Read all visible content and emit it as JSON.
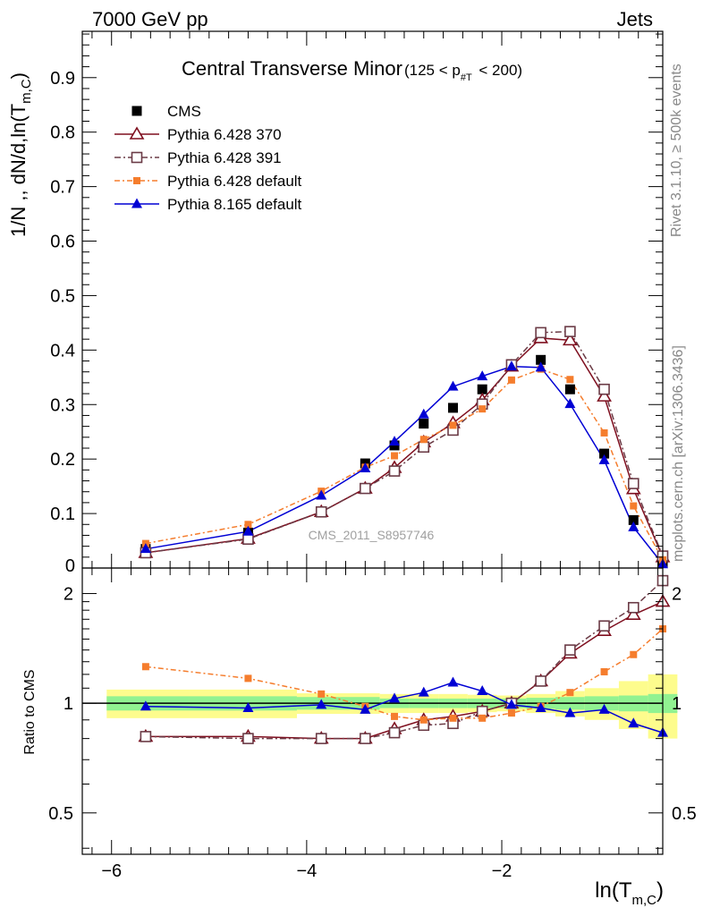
{
  "header": {
    "left": "7000 GeV pp",
    "right": "Jets"
  },
  "side_texts": {
    "rivet": "Rivet 3.1.10, ≥ 500k events",
    "mcplots": "mcplots.cern.ch [arXiv:1306.3436]"
  },
  "chart_data": [
    {
      "type": "line",
      "title_main": "Central Transverse Minor",
      "title_cut": "(125 < p",
      "title_cut_sub": "#T",
      "title_cut_end": " < 200)",
      "ylabel_main": "1/N ,, dN/d,ln(T",
      "ylabel_sub": "m,C",
      "ylabel_end": ")",
      "watermark": "CMS_2011_S8957746",
      "xlim": [
        -6.3,
        -0.35
      ],
      "ylim": [
        0,
        0.985
      ],
      "yticks": [
        0.1,
        0.2,
        0.3,
        0.4,
        0.5,
        0.6,
        0.7,
        0.8,
        0.9
      ],
      "ytick_labels": [
        "0.1",
        "0.2",
        "0.3",
        "0.4",
        "0.5",
        "0.6",
        "0.7",
        "0.8",
        "0.9"
      ],
      "ytick_zero_label": "0",
      "grid": false,
      "legend_position": "top-left",
      "series": [
        {
          "name": "CMS",
          "color": "#000000",
          "marker": "square-filled",
          "x": [
            -5.65,
            -4.6,
            -3.85,
            -3.4,
            -3.1,
            -2.8,
            -2.5,
            -2.2,
            -1.9,
            -1.6,
            -1.3,
            -0.95,
            -0.65,
            -0.35
          ],
          "y": [
            0.035,
            0.065,
            0.103,
            0.192,
            0.225,
            0.265,
            0.294,
            0.328,
            0.372,
            0.382,
            0.328,
            0.21,
            0.088,
            0.01
          ]
        },
        {
          "name": "Pythia 6.428 370",
          "color": "#7f0f1f",
          "marker": "triangle-open",
          "dash": "",
          "x": [
            -5.65,
            -4.6,
            -3.85,
            -3.4,
            -3.1,
            -2.8,
            -2.5,
            -2.2,
            -1.9,
            -1.6,
            -1.3,
            -0.95,
            -0.65,
            -0.35
          ],
          "y": [
            0.028,
            0.054,
            0.103,
            0.146,
            0.184,
            0.231,
            0.266,
            0.308,
            0.37,
            0.422,
            0.418,
            0.315,
            0.145,
            0.02
          ]
        },
        {
          "name": "Pythia 6.428 391",
          "color": "#6b3b46",
          "marker": "square-open",
          "dash": "7,3,2,3",
          "x": [
            -5.65,
            -4.6,
            -3.85,
            -3.4,
            -3.1,
            -2.8,
            -2.5,
            -2.2,
            -1.9,
            -1.6,
            -1.3,
            -0.95,
            -0.65,
            -0.35
          ],
          "y": [
            0.028,
            0.053,
            0.103,
            0.146,
            0.178,
            0.222,
            0.253,
            0.301,
            0.373,
            0.432,
            0.434,
            0.328,
            0.155,
            0.022
          ]
        },
        {
          "name": "Pythia 6.428 default",
          "color": "#f57d2d",
          "marker": "square-small",
          "dash": "6,3,2,3",
          "x": [
            -5.65,
            -4.6,
            -3.85,
            -3.4,
            -3.1,
            -2.8,
            -2.5,
            -2.2,
            -1.9,
            -1.6,
            -1.3,
            -0.95,
            -0.65,
            -0.35
          ],
          "y": [
            0.045,
            0.08,
            0.141,
            0.185,
            0.206,
            0.236,
            0.262,
            0.292,
            0.345,
            0.365,
            0.346,
            0.248,
            0.114,
            0.015
          ]
        },
        {
          "name": "Pythia 8.165 default",
          "color": "#0000d4",
          "marker": "triangle-filled",
          "dash": "",
          "x": [
            -5.65,
            -4.6,
            -3.85,
            -3.4,
            -3.1,
            -2.8,
            -2.5,
            -2.2,
            -1.9,
            -1.6,
            -1.3,
            -0.95,
            -0.65,
            -0.35
          ],
          "y": [
            0.035,
            0.067,
            0.133,
            0.183,
            0.232,
            0.282,
            0.333,
            0.352,
            0.37,
            0.368,
            0.301,
            0.198,
            0.075,
            0.007
          ]
        }
      ]
    },
    {
      "type": "line",
      "ylabel": "Ratio to CMS",
      "xlabel_main": "ln(T",
      "xlabel_sub": "m,C",
      "xlabel_end": ")",
      "xlim": [
        -6.3,
        -0.35
      ],
      "ylim": [
        0.385,
        2.35
      ],
      "log_y": true,
      "yticks": [
        0.5,
        1,
        2
      ],
      "ytick_labels": [
        "0.5",
        "1",
        "2"
      ],
      "xticks": [
        -6,
        -4,
        -2
      ],
      "xtick_labels": [
        "−6",
        "−4",
        "−2"
      ],
      "reference_line": 1,
      "band_bins": [
        -6.05,
        -5.2,
        -4.1,
        -3.6,
        -3.25,
        -2.95,
        -2.65,
        -2.35,
        -2.05,
        -1.75,
        -1.45,
        -1.15,
        -0.8,
        -0.5,
        -0.2
      ],
      "band_inner": [
        0.045,
        0.045,
        0.04,
        0.04,
        0.03,
        0.03,
        0.03,
        0.03,
        0.03,
        0.035,
        0.04,
        0.045,
        0.05,
        0.06
      ],
      "band_outer": [
        0.09,
        0.09,
        0.065,
        0.065,
        0.06,
        0.06,
        0.06,
        0.055,
        0.05,
        0.06,
        0.08,
        0.1,
        0.15,
        0.2
      ],
      "band_colors": {
        "inner": "#91f291",
        "outer": "#fdfc8d"
      },
      "series": [
        {
          "name": "Pythia 6.428 370",
          "x": [
            -5.65,
            -4.6,
            -3.85,
            -3.4,
            -3.1,
            -2.8,
            -2.5,
            -2.2,
            -1.9,
            -1.6,
            -1.3,
            -0.95,
            -0.65,
            -0.35
          ],
          "y": [
            0.81,
            0.81,
            0.8,
            0.8,
            0.85,
            0.9,
            0.92,
            0.95,
            1.0,
            1.15,
            1.37,
            1.58,
            1.75,
            1.9
          ]
        },
        {
          "name": "Pythia 6.428 391",
          "x": [
            -5.65,
            -4.6,
            -3.85,
            -3.4,
            -3.1,
            -2.8,
            -2.5,
            -2.2,
            -1.9,
            -1.6,
            -1.3,
            -0.95,
            -0.65,
            -0.35
          ],
          "y": [
            0.81,
            0.8,
            0.8,
            0.8,
            0.83,
            0.87,
            0.88,
            0.95,
            1.0,
            1.15,
            1.4,
            1.63,
            1.83,
            2.17
          ]
        },
        {
          "name": "Pythia 6.428 default",
          "x": [
            -5.65,
            -4.6,
            -3.85,
            -3.4,
            -3.1,
            -2.8,
            -2.5,
            -2.2,
            -1.9,
            -1.6,
            -1.3,
            -0.95,
            -0.65,
            -0.35
          ],
          "y": [
            1.26,
            1.17,
            1.06,
            0.98,
            0.92,
            0.9,
            0.91,
            0.91,
            0.94,
            0.98,
            1.07,
            1.22,
            1.36,
            1.6
          ]
        },
        {
          "name": "Pythia 8.165 default",
          "x": [
            -5.65,
            -4.6,
            -3.85,
            -3.4,
            -3.1,
            -2.8,
            -2.5,
            -2.2,
            -1.9,
            -1.6,
            -1.3,
            -0.95,
            -0.65,
            -0.35
          ],
          "y": [
            0.98,
            0.97,
            0.99,
            0.96,
            1.03,
            1.07,
            1.14,
            1.08,
            0.99,
            0.97,
            0.94,
            0.96,
            0.88,
            0.83
          ]
        }
      ]
    }
  ]
}
